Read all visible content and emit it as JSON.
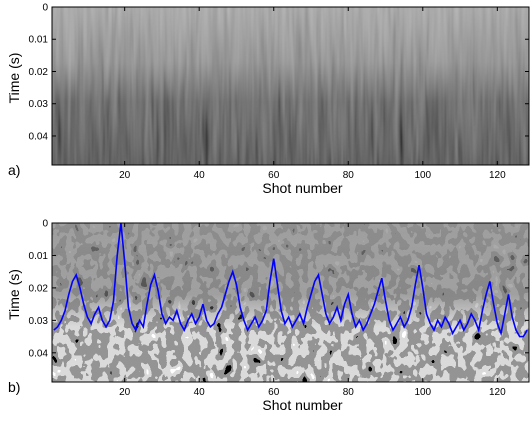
{
  "chart_data": [
    {
      "type": "image",
      "panel_label": "a)",
      "xlabel": "Shot number",
      "ylabel": "Time (s)",
      "xlim": [
        0.5,
        128.5
      ],
      "ylim": [
        0,
        0.049
      ],
      "y_inverted": true,
      "xticks": [
        20,
        40,
        60,
        80,
        100,
        120
      ],
      "yticks": [
        0,
        0.01,
        0.02,
        0.03,
        0.04
      ]
    },
    {
      "type": "line",
      "panel_label": "b)",
      "xlabel": "Shot number",
      "ylabel": "Time (s)",
      "xlim": [
        0.5,
        128.5
      ],
      "ylim": [
        0,
        0.049
      ],
      "y_inverted": true,
      "xticks": [
        20,
        40,
        60,
        80,
        100,
        120
      ],
      "yticks": [
        0,
        0.01,
        0.02,
        0.03,
        0.04
      ],
      "x": [
        1,
        2,
        3,
        4,
        5,
        6,
        7,
        8,
        9,
        10,
        11,
        12,
        13,
        14,
        15,
        16,
        17,
        18,
        19,
        20,
        21,
        22,
        23,
        24,
        25,
        26,
        27,
        28,
        29,
        30,
        31,
        32,
        33,
        34,
        35,
        36,
        37,
        38,
        39,
        40,
        41,
        42,
        43,
        44,
        45,
        46,
        47,
        48,
        49,
        50,
        51,
        52,
        53,
        54,
        55,
        56,
        57,
        58,
        59,
        60,
        61,
        62,
        63,
        64,
        65,
        66,
        67,
        68,
        69,
        70,
        71,
        72,
        73,
        74,
        75,
        76,
        77,
        78,
        79,
        80,
        81,
        82,
        83,
        84,
        85,
        86,
        87,
        88,
        89,
        90,
        91,
        92,
        93,
        94,
        95,
        96,
        97,
        98,
        99,
        100,
        101,
        102,
        103,
        104,
        105,
        106,
        107,
        108,
        109,
        110,
        111,
        112,
        113,
        114,
        115,
        116,
        117,
        118,
        119,
        120,
        121,
        122,
        123,
        124,
        125,
        126,
        127,
        128
      ],
      "series": [
        {
          "color": "#0000ff",
          "values": [
            0.033,
            0.032,
            0.03,
            0.027,
            0.022,
            0.018,
            0.016,
            0.02,
            0.025,
            0.029,
            0.031,
            0.028,
            0.026,
            0.03,
            0.032,
            0.03,
            0.024,
            0.01,
            0.0,
            0.012,
            0.026,
            0.031,
            0.033,
            0.03,
            0.032,
            0.025,
            0.019,
            0.016,
            0.021,
            0.028,
            0.031,
            0.029,
            0.03,
            0.027,
            0.031,
            0.033,
            0.03,
            0.028,
            0.031,
            0.029,
            0.025,
            0.03,
            0.032,
            0.031,
            0.028,
            0.026,
            0.022,
            0.018,
            0.015,
            0.019,
            0.026,
            0.03,
            0.033,
            0.031,
            0.029,
            0.032,
            0.03,
            0.027,
            0.018,
            0.011,
            0.019,
            0.027,
            0.031,
            0.029,
            0.032,
            0.03,
            0.028,
            0.031,
            0.026,
            0.022,
            0.018,
            0.016,
            0.022,
            0.028,
            0.031,
            0.029,
            0.026,
            0.03,
            0.025,
            0.022,
            0.028,
            0.032,
            0.03,
            0.033,
            0.031,
            0.028,
            0.025,
            0.021,
            0.017,
            0.024,
            0.03,
            0.033,
            0.031,
            0.029,
            0.032,
            0.03,
            0.026,
            0.019,
            0.013,
            0.02,
            0.028,
            0.031,
            0.033,
            0.03,
            0.032,
            0.029,
            0.031,
            0.034,
            0.032,
            0.03,
            0.033,
            0.031,
            0.028,
            0.03,
            0.033,
            0.027,
            0.022,
            0.018,
            0.025,
            0.031,
            0.034,
            0.028,
            0.022,
            0.029,
            0.033,
            0.035,
            0.035,
            0.033
          ]
        }
      ]
    }
  ]
}
